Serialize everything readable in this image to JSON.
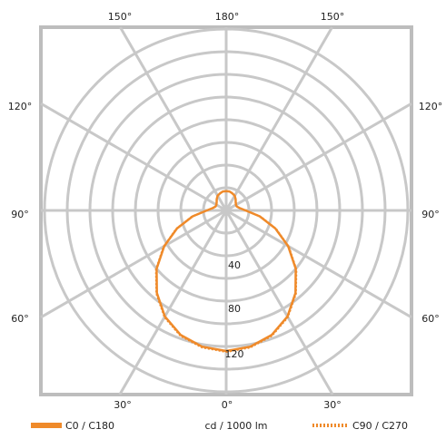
{
  "chart_data": {
    "type": "polar",
    "angle_labels": {
      "top_left": "150°",
      "top": "180°",
      "top_right": "150°",
      "upper_left": "120°",
      "upper_right": "120°",
      "left": "90°",
      "right": "90°",
      "lower_left": "60°",
      "lower_right": "60°",
      "bottom_left": "30°",
      "bottom": "0°",
      "bottom_right": "30°"
    },
    "radial_ticks": [
      40,
      80,
      120
    ],
    "radial_max": 160,
    "unit": "cd / 1000 lm",
    "series": [
      {
        "name": "C0 / C180",
        "style": "solid",
        "color": "#ef8a2a",
        "angles_deg": [
          0,
          10,
          20,
          30,
          40,
          50,
          60,
          70,
          80,
          90,
          100,
          110,
          120,
          130,
          140,
          150,
          160,
          170,
          180
        ],
        "intensity": [
          124,
          122,
          117,
          108,
          95,
          80,
          63,
          46,
          30,
          17,
          12,
          10,
          10,
          11,
          13,
          15,
          16,
          17,
          17
        ]
      },
      {
        "name": "C90 / C270",
        "style": "dotted",
        "color": "#ef8a2a",
        "angles_deg": [
          0,
          10,
          20,
          30,
          40,
          50,
          60,
          70,
          80,
          90,
          100,
          110,
          120,
          130,
          140,
          150,
          160,
          170,
          180
        ],
        "intensity": [
          125,
          123,
          118,
          109,
          96,
          81,
          64,
          47,
          31,
          18,
          12,
          10,
          10,
          11,
          13,
          15,
          16,
          17,
          17
        ]
      }
    ]
  },
  "colors": {
    "grid": "#c8c8c8",
    "frame": "#bdbdbd",
    "curve": "#ef8a2a"
  }
}
